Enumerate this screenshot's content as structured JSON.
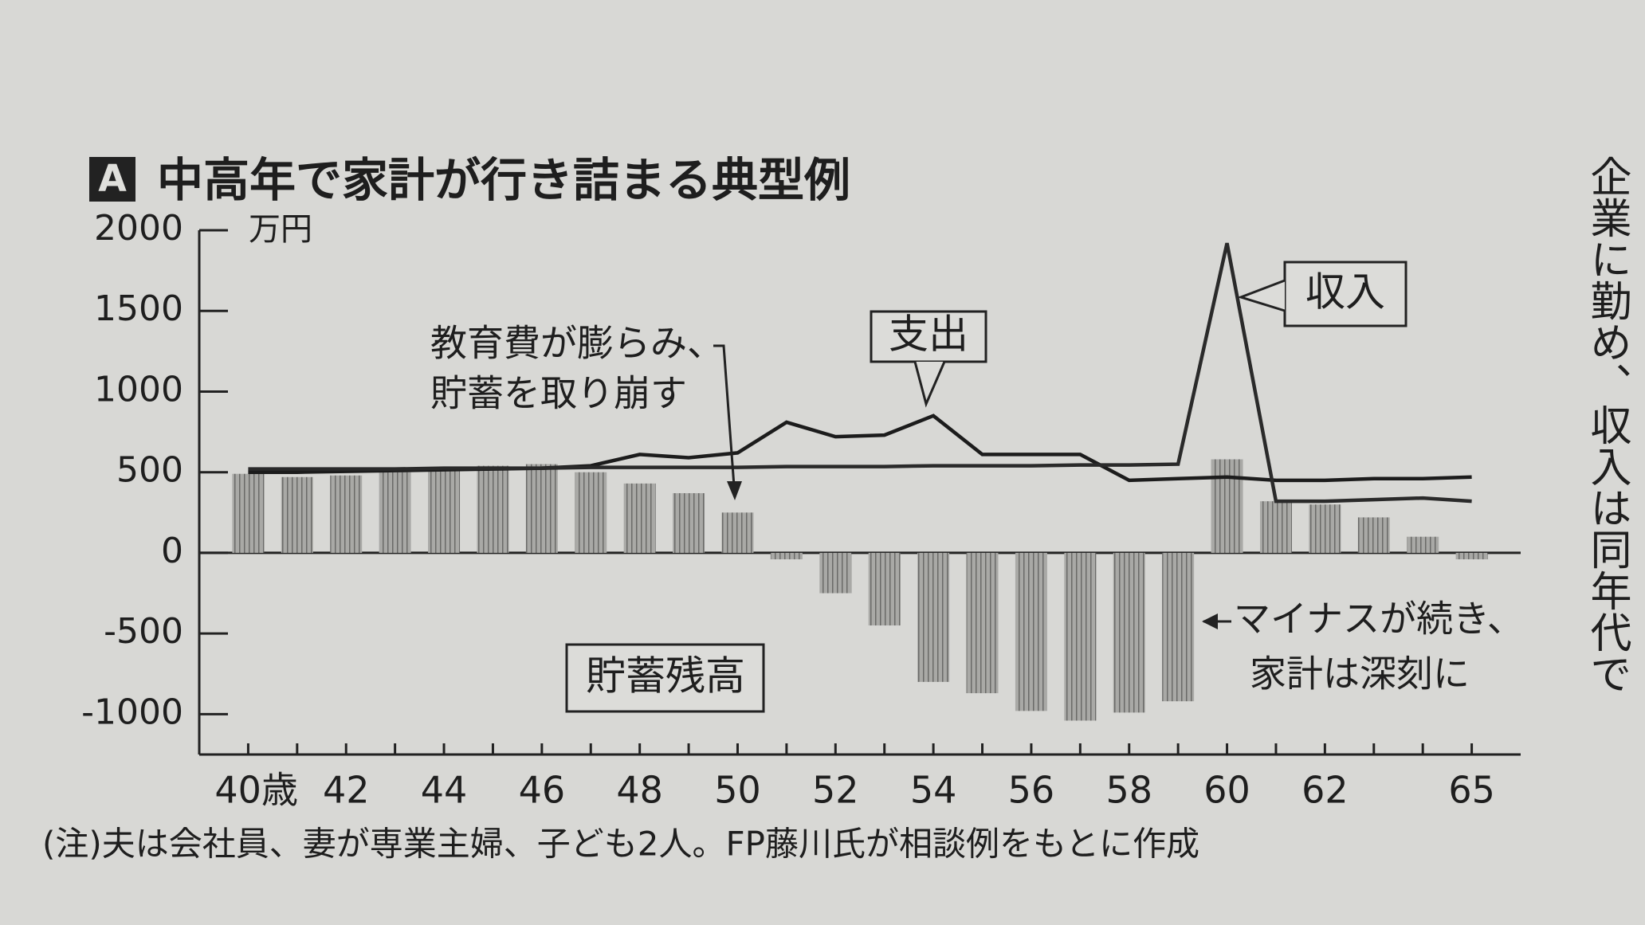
{
  "chart_data": {
    "type": "combo",
    "title_badge": "A",
    "title": "中高年で家計が行き詰まる典型例",
    "y_unit": "万円",
    "x": [
      40,
      41,
      42,
      43,
      44,
      45,
      46,
      47,
      48,
      49,
      50,
      51,
      52,
      53,
      54,
      55,
      56,
      57,
      58,
      59,
      60,
      61,
      62,
      63,
      64,
      65
    ],
    "xlim": [
      39,
      66
    ],
    "xticks": [
      {
        "value": 40,
        "label": "40歳"
      },
      42,
      44,
      46,
      48,
      50,
      52,
      54,
      56,
      58,
      60,
      62,
      65
    ],
    "ylim": [
      -1250,
      2000
    ],
    "yticks": [
      2000,
      1500,
      1000,
      500,
      0,
      -500,
      -1000
    ],
    "series": [
      {
        "name": "貯蓄残高",
        "type": "bar",
        "color": "#7d7d7b",
        "values": [
          490,
          470,
          480,
          500,
          520,
          540,
          550,
          500,
          430,
          370,
          250,
          -40,
          -250,
          -450,
          -800,
          -870,
          -980,
          -1040,
          -990,
          -920,
          580,
          320,
          300,
          220,
          100,
          -40
        ]
      },
      {
        "name": "支出",
        "type": "line",
        "color": "#1c1c1c",
        "values": [
          500,
          500,
          505,
          510,
          515,
          520,
          525,
          540,
          610,
          590,
          620,
          810,
          720,
          730,
          850,
          610,
          610,
          610,
          450,
          460,
          470,
          450,
          450,
          460,
          460,
          470
        ]
      },
      {
        "name": "収入",
        "type": "line",
        "color": "#2a2a2a",
        "values": [
          520,
          520,
          520,
          520,
          525,
          525,
          525,
          530,
          530,
          530,
          530,
          535,
          535,
          535,
          540,
          540,
          540,
          545,
          545,
          550,
          1920,
          320,
          320,
          330,
          340,
          320
        ]
      }
    ],
    "annotations": [
      "教育費が膨らみ、",
      "貯蓄を取り崩す",
      "マイナスが続き、",
      "家計は深刻に"
    ],
    "note": "(注)夫は会社員、妻が専業主婦、子ども2人。FP藤川氏が相談例をもとに作成"
  },
  "side_text": "企業に勤め、収入は同年代で"
}
